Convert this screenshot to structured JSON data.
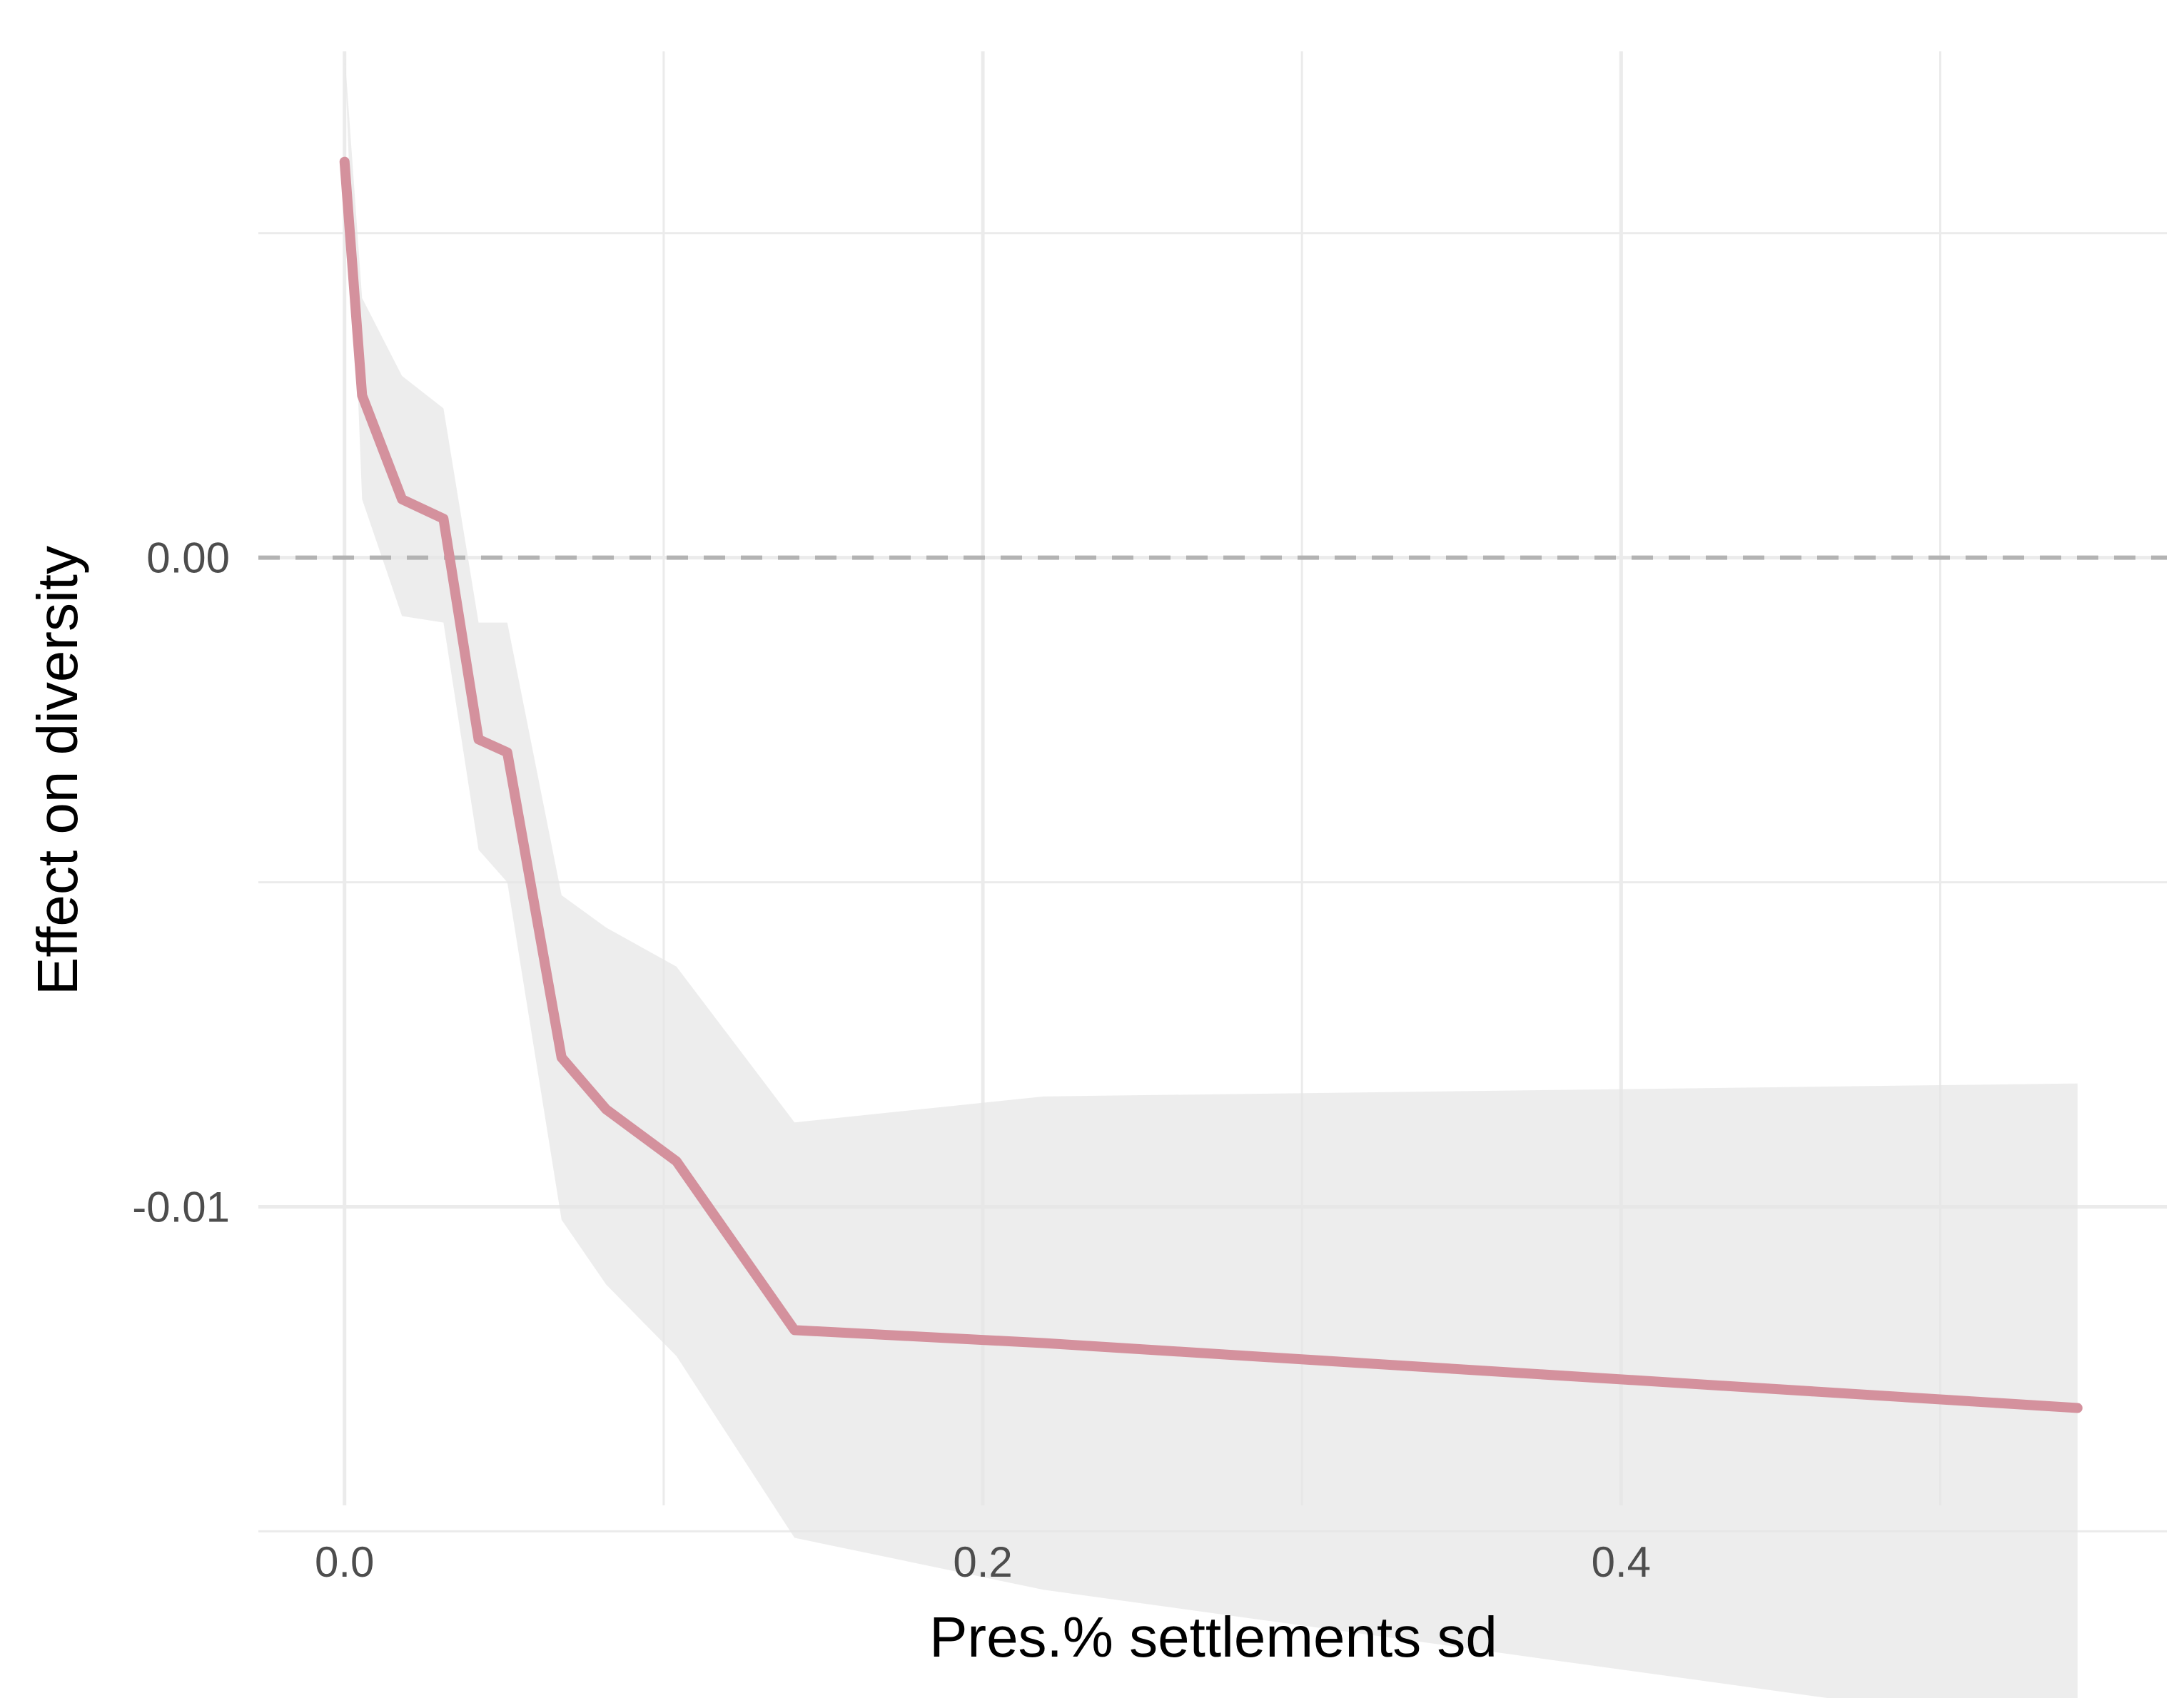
{
  "chart_data": {
    "type": "line",
    "title": "",
    "xlabel": "Pres.% settlements sd",
    "ylabel": "Effect on diversity",
    "xlim": [
      -0.027,
      0.571
    ],
    "ylim": [
      -0.0146,
      0.0078
    ],
    "x_ticks": [
      {
        "value": 0.0,
        "label": "0.0"
      },
      {
        "value": 0.2,
        "label": "0.2"
      },
      {
        "value": 0.4,
        "label": "0.4"
      }
    ],
    "y_ticks": [
      {
        "value": 0.0,
        "label": "0.00"
      },
      {
        "value": -0.01,
        "label": "-0.01"
      }
    ],
    "x_minor": [
      0.1,
      0.3,
      0.5
    ],
    "y_minor": [
      0.005,
      -0.005,
      -0.015
    ],
    "grid": true,
    "reference_line": {
      "y": 0.0,
      "style": "dashed",
      "color": "#b3b3b3"
    },
    "series": [
      {
        "color": "#d4919d",
        "ribbon_color": "#e6e6e6",
        "x": [
          0.0,
          0.0055,
          0.018,
          0.031,
          0.042,
          0.051,
          0.068,
          0.082,
          0.104,
          0.141,
          0.219,
          0.543
        ],
        "y": [
          0.0061,
          0.0025,
          0.0009,
          0.0006,
          -0.0028,
          -0.003,
          -0.0077,
          -0.0085,
          -0.0093,
          -0.0119,
          -0.0121,
          -0.0131
        ],
        "lower": [
          0.0078,
          0.0009,
          -0.0009,
          -0.001,
          -0.0045,
          -0.005,
          -0.0102,
          -0.0112,
          -0.0123,
          -0.0151,
          -0.0159,
          -0.0181
        ],
        "upper": [
          0.0078,
          0.004,
          0.0028,
          0.0023,
          -0.001,
          -0.001,
          -0.0052,
          -0.0057,
          -0.0063,
          -0.0087,
          -0.0083,
          -0.0081
        ]
      }
    ]
  }
}
